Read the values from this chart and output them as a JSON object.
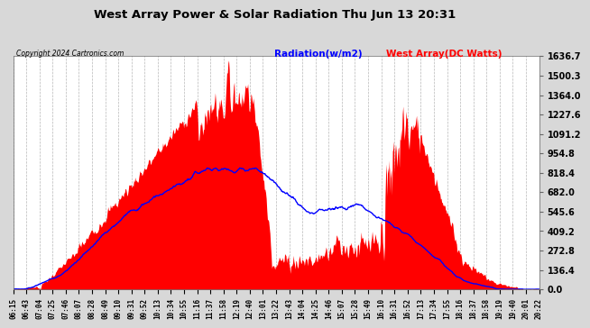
{
  "title": "West Array Power & Solar Radiation Thu Jun 13 20:31",
  "copyright": "Copyright 2024 Cartronics.com",
  "legend_radiation": "Radiation(w/m2)",
  "legend_west": "West Array(DC Watts)",
  "ymin": 0.0,
  "ymax": 1636.7,
  "yticks": [
    0.0,
    136.4,
    272.8,
    409.2,
    545.6,
    682.0,
    818.4,
    954.8,
    1091.2,
    1227.6,
    1364.0,
    1500.3,
    1636.7
  ],
  "bg_color": "#d8d8d8",
  "plot_bg_color": "#ffffff",
  "radiation_color": "#0000ff",
  "west_color": "#ff0000",
  "grid_color": "#888888",
  "title_color": "#000000",
  "copyright_color": "#000000",
  "xtick_labels": [
    "06:15",
    "06:43",
    "07:04",
    "07:25",
    "07:46",
    "08:07",
    "08:28",
    "08:49",
    "09:10",
    "09:31",
    "09:52",
    "10:13",
    "10:34",
    "10:55",
    "11:16",
    "11:37",
    "11:58",
    "12:19",
    "12:40",
    "13:01",
    "13:22",
    "13:43",
    "14:04",
    "14:25",
    "14:46",
    "15:07",
    "15:28",
    "15:49",
    "16:10",
    "16:31",
    "16:52",
    "17:13",
    "17:34",
    "17:55",
    "18:16",
    "18:37",
    "18:58",
    "19:19",
    "19:40",
    "20:01",
    "20:22"
  ]
}
